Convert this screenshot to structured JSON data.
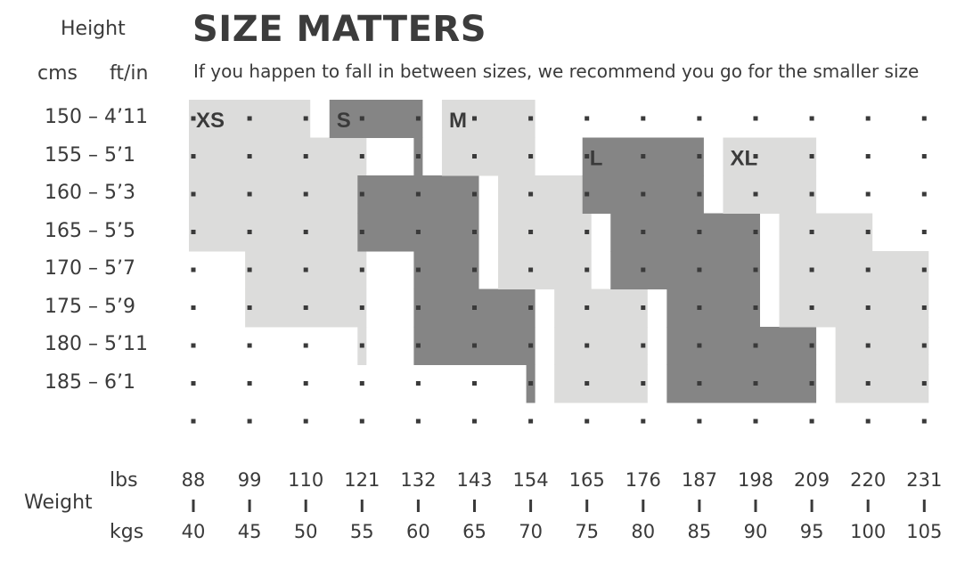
{
  "title": "SIZE MATTERS",
  "subtitle": "If you happen to fall in between sizes, we recommend you go for the smaller size",
  "height_label": "Height",
  "cms_label": "cms",
  "ftin_label": "ft/in",
  "weight_label": "Weight",
  "lbs_label": "lbs",
  "kgs_label": "kgs",
  "colors": {
    "light": "#dcdcdb",
    "dark": "#858585",
    "text": "#3a3a3a",
    "dot": "#3a3a3a"
  },
  "chart_data": {
    "type": "heatmap",
    "title": "SIZE MATTERS",
    "subtitle": "If you happen to fall in between sizes, we recommend you go for the smaller size",
    "xlabel": "Weight",
    "ylabel": "Height",
    "height_rows": [
      {
        "cm": "150",
        "ftin": "4’11"
      },
      {
        "cm": "155",
        "ftin": "5’1"
      },
      {
        "cm": "160",
        "ftin": "5’3"
      },
      {
        "cm": "165",
        "ftin": "5’5"
      },
      {
        "cm": "170",
        "ftin": "5’7"
      },
      {
        "cm": "175",
        "ftin": "5’9"
      },
      {
        "cm": "180",
        "ftin": "5’11"
      },
      {
        "cm": "185",
        "ftin": "6’1"
      }
    ],
    "weight_columns": [
      {
        "lbs": "88",
        "kgs": "40"
      },
      {
        "lbs": "99",
        "kgs": "45"
      },
      {
        "lbs": "110",
        "kgs": "50"
      },
      {
        "lbs": "121",
        "kgs": "55"
      },
      {
        "lbs": "132",
        "kgs": "60"
      },
      {
        "lbs": "143",
        "kgs": "65"
      },
      {
        "lbs": "154",
        "kgs": "70"
      },
      {
        "lbs": "165",
        "kgs": "75"
      },
      {
        "lbs": "176",
        "kgs": "80"
      },
      {
        "lbs": "187",
        "kgs": "85"
      },
      {
        "lbs": "198",
        "kgs": "90"
      },
      {
        "lbs": "209",
        "kgs": "95"
      },
      {
        "lbs": "220",
        "kgs": "100"
      },
      {
        "lbs": "231",
        "kgs": "105"
      }
    ],
    "sizes": [
      {
        "name": "XS",
        "shade": "light",
        "ranges_kg_by_height_cm": [
          {
            "cm": 150,
            "kg": [
              40,
              50
            ]
          },
          {
            "cm": 155,
            "kg": [
              40,
              55
            ]
          },
          {
            "cm": 160,
            "kg": [
              40,
              55
            ]
          },
          {
            "cm": 165,
            "kg": [
              40,
              55
            ]
          },
          {
            "cm": 170,
            "kg": [
              45,
              55
            ]
          },
          {
            "cm": 175,
            "kg": [
              45,
              55
            ]
          },
          {
            "cm": 180,
            "kg": [
              55,
              55
            ]
          }
        ]
      },
      {
        "name": "S",
        "shade": "dark",
        "ranges_kg_by_height_cm": [
          {
            "cm": 150,
            "kg": [
              52.5,
              60
            ]
          },
          {
            "cm": 155,
            "kg": [
              60,
              60
            ]
          },
          {
            "cm": 160,
            "kg": [
              55,
              65
            ]
          },
          {
            "cm": 165,
            "kg": [
              55,
              65
            ]
          },
          {
            "cm": 170,
            "kg": [
              60,
              65
            ]
          },
          {
            "cm": 175,
            "kg": [
              60,
              70
            ]
          },
          {
            "cm": 180,
            "kg": [
              60,
              70
            ]
          },
          {
            "cm": 185,
            "kg": [
              70,
              70
            ]
          }
        ]
      },
      {
        "name": "M",
        "shade": "light",
        "ranges_kg_by_height_cm": [
          {
            "cm": 150,
            "kg": [
              62.5,
              70
            ]
          },
          {
            "cm": 155,
            "kg": [
              62.5,
              70
            ]
          },
          {
            "cm": 160,
            "kg": [
              67.5,
              75
            ]
          },
          {
            "cm": 165,
            "kg": [
              67.5,
              75
            ]
          },
          {
            "cm": 170,
            "kg": [
              67.5,
              75
            ]
          },
          {
            "cm": 175,
            "kg": [
              72.5,
              80
            ]
          },
          {
            "cm": 180,
            "kg": [
              72.5,
              80
            ]
          },
          {
            "cm": 185,
            "kg": [
              72.5,
              80
            ]
          }
        ]
      },
      {
        "name": "L",
        "shade": "dark",
        "ranges_kg_by_height_cm": [
          {
            "cm": 155,
            "kg": [
              75,
              85
            ]
          },
          {
            "cm": 160,
            "kg": [
              75,
              85
            ]
          },
          {
            "cm": 165,
            "kg": [
              77.5,
              90
            ]
          },
          {
            "cm": 170,
            "kg": [
              77.5,
              90
            ]
          },
          {
            "cm": 175,
            "kg": [
              82.5,
              90
            ]
          },
          {
            "cm": 180,
            "kg": [
              82.5,
              95
            ]
          },
          {
            "cm": 185,
            "kg": [
              82.5,
              95
            ]
          }
        ]
      },
      {
        "name": "XL",
        "shade": "light",
        "ranges_kg_by_height_cm": [
          {
            "cm": 155,
            "kg": [
              87.5,
              95
            ]
          },
          {
            "cm": 160,
            "kg": [
              87.5,
              95
            ]
          },
          {
            "cm": 165,
            "kg": [
              92.5,
              100
            ]
          },
          {
            "cm": 170,
            "kg": [
              92.5,
              105
            ]
          },
          {
            "cm": 175,
            "kg": [
              92.5,
              105
            ]
          },
          {
            "cm": 180,
            "kg": [
              97.5,
              105
            ]
          },
          {
            "cm": 185,
            "kg": [
              97.5,
              105
            ]
          }
        ]
      }
    ],
    "grid": "dots",
    "legend": "none"
  }
}
